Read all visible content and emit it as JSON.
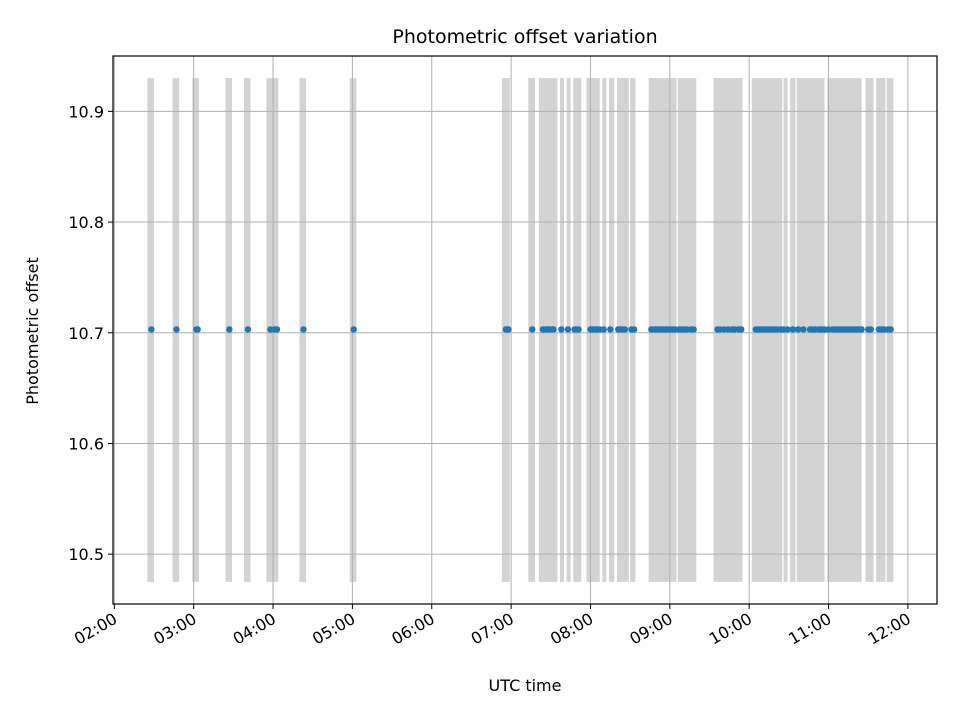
{
  "chart_data": {
    "type": "scatter",
    "title": "Photometric offset variation",
    "xlabel": "UTC time",
    "ylabel": "Photometric offset",
    "xlim": [
      "01:59",
      "12:22"
    ],
    "ylim": [
      10.455,
      10.95
    ],
    "x_ticks": [
      "02:00",
      "03:00",
      "04:00",
      "05:00",
      "06:00",
      "07:00",
      "08:00",
      "09:00",
      "10:00",
      "11:00",
      "12:00"
    ],
    "y_ticks": [
      "10.5",
      "10.6",
      "10.7",
      "10.8",
      "10.9"
    ],
    "grid": true,
    "point_color": "#1f77b4",
    "band_color": "#d3d3d3",
    "band_y_range": [
      10.475,
      10.93
    ],
    "points": {
      "y": 10.703,
      "x": [
        "02:28",
        "02:47",
        "03:02",
        "03:03",
        "03:27",
        "03:41",
        "03:58",
        "04:01",
        "04:03",
        "04:23",
        "05:01",
        "06:56",
        "06:57",
        "06:58",
        "07:16",
        "07:24",
        "07:25",
        "07:27",
        "07:28",
        "07:29",
        "07:31",
        "07:32",
        "07:38",
        "07:43",
        "07:48",
        "07:49",
        "07:51",
        "08:00",
        "08:01",
        "08:02",
        "08:04",
        "08:05",
        "08:07",
        "08:10",
        "08:15",
        "08:21",
        "08:22",
        "08:24",
        "08:26",
        "08:31",
        "08:33",
        "08:46",
        "08:47",
        "08:49",
        "08:50",
        "08:52",
        "08:53",
        "08:55",
        "08:57",
        "08:58",
        "09:00",
        "09:02",
        "09:04",
        "09:07",
        "09:09",
        "09:11",
        "09:13",
        "09:16",
        "09:18",
        "09:36",
        "09:38",
        "09:41",
        "09:44",
        "09:47",
        "09:49",
        "09:52",
        "09:54",
        "10:05",
        "10:07",
        "10:09",
        "10:11",
        "10:13",
        "10:15",
        "10:17",
        "10:19",
        "10:21",
        "10:24",
        "10:26",
        "10:29",
        "10:33",
        "10:37",
        "10:41",
        "10:46",
        "10:48",
        "10:50",
        "10:53",
        "10:55",
        "10:57",
        "11:00",
        "11:03",
        "11:05",
        "11:07",
        "11:09",
        "11:11",
        "11:13",
        "11:15",
        "11:17",
        "11:19",
        "11:21",
        "11:23",
        "11:25",
        "11:30",
        "11:32",
        "11:38",
        "11:40",
        "11:42",
        "11:45",
        "11:47"
      ]
    },
    "exposure_bands": [
      [
        "02:25",
        "02:30"
      ],
      [
        "02:44",
        "02:49"
      ],
      [
        "02:59",
        "03:04"
      ],
      [
        "03:24",
        "03:29"
      ],
      [
        "03:38",
        "03:43"
      ],
      [
        "03:55",
        "04:04"
      ],
      [
        "04:20",
        "04:25"
      ],
      [
        "04:58",
        "05:03"
      ],
      [
        "06:53",
        "06:59"
      ],
      [
        "07:13",
        "07:18"
      ],
      [
        "07:21",
        "07:35"
      ],
      [
        "07:37",
        "07:40"
      ],
      [
        "07:42",
        "07:45"
      ],
      [
        "07:47",
        "07:53"
      ],
      [
        "07:57",
        "08:07"
      ],
      [
        "08:09",
        "08:12"
      ],
      [
        "08:14",
        "08:18"
      ],
      [
        "08:20",
        "08:29"
      ],
      [
        "08:30",
        "08:34"
      ],
      [
        "08:44",
        "09:05"
      ],
      [
        "09:06",
        "09:20"
      ],
      [
        "09:33",
        "09:55"
      ],
      [
        "10:02",
        "10:25"
      ],
      [
        "10:26",
        "10:29"
      ],
      [
        "10:31",
        "10:35"
      ],
      [
        "10:36",
        "10:57"
      ],
      [
        "10:59",
        "11:25"
      ],
      [
        "11:28",
        "11:34"
      ],
      [
        "11:36",
        "11:43"
      ],
      [
        "11:44",
        "11:49"
      ]
    ]
  }
}
